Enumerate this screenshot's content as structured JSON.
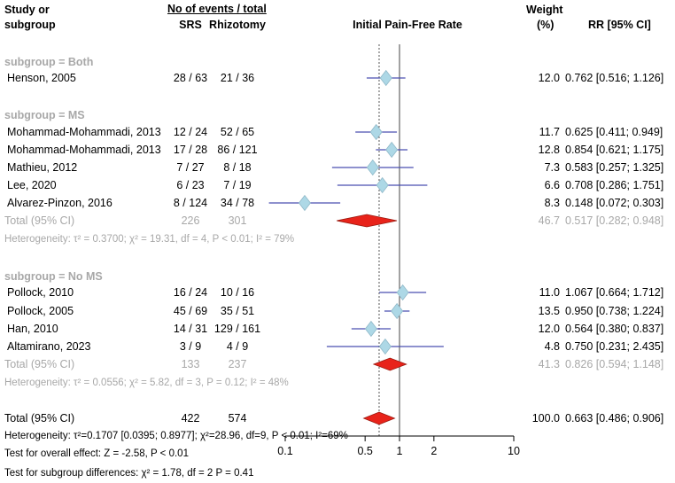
{
  "header": {
    "col_study_line1": "Study or",
    "col_study_line2": "subgroup",
    "col_events": "No of events / total",
    "col_srs": "SRS",
    "col_rhizotomy": "Rhizotomy",
    "col_plot": "Initial Pain-Free Rate",
    "col_weight_line1": "Weight",
    "col_weight_line2": "(%)",
    "col_rr": "RR [95% CI]"
  },
  "colors": {
    "diamond_study": "#add8e6",
    "diamond_study_stroke": "#8fb8c8",
    "ci_line": "#4a4fb0",
    "summary_diamond": "#e8231a",
    "summary_stroke": "#9a1a10",
    "gray_text": "#a8a8a8"
  },
  "chart_data": {
    "type": "forest",
    "title": "Initial Pain-Free Rate",
    "xscale": "log",
    "xlim": [
      0.1,
      10
    ],
    "xticks": [
      "0.1",
      "0.5",
      "1",
      "2",
      "10"
    ],
    "null_line": 1,
    "overall_line": 0.663,
    "subgroups": [
      {
        "label": "subgroup = Both",
        "studies": [
          {
            "name": "Henson, 2005",
            "srs": "28 / 63",
            "rhiz": "21 / 36",
            "weight": "12.0",
            "rr_text": "0.762 [0.516; 1.126]",
            "rr": 0.762,
            "lo": 0.516,
            "hi": 1.126
          }
        ]
      },
      {
        "label": "subgroup = MS",
        "studies": [
          {
            "name": "Mohammad-Mohammadi, 2013",
            "srs": "12 / 24",
            "rhiz": "52 / 65",
            "weight": "11.7",
            "rr_text": "0.625 [0.411; 0.949]",
            "rr": 0.625,
            "lo": 0.411,
            "hi": 0.949
          },
          {
            "name": "Mohammad-Mohammadi, 2013",
            "srs": "17 / 28",
            "rhiz": "86 / 121",
            "weight": "12.8",
            "rr_text": "0.854 [0.621; 1.175]",
            "rr": 0.854,
            "lo": 0.621,
            "hi": 1.175
          },
          {
            "name": "Mathieu, 2012",
            "srs": "7 / 27",
            "rhiz": "8 / 18",
            "weight": "7.3",
            "rr_text": "0.583 [0.257; 1.325]",
            "rr": 0.583,
            "lo": 0.257,
            "hi": 1.325
          },
          {
            "name": "Lee, 2020",
            "srs": "6 / 23",
            "rhiz": "7 / 19",
            "weight": "6.6",
            "rr_text": "0.708 [0.286; 1.751]",
            "rr": 0.708,
            "lo": 0.286,
            "hi": 1.751
          },
          {
            "name": "Alvarez-Pinzon, 2016",
            "srs": "8 / 124",
            "rhiz": "34 / 78",
            "weight": "8.3",
            "rr_text": "0.148 [0.072; 0.303]",
            "rr": 0.148,
            "lo": 0.072,
            "hi": 0.303
          }
        ],
        "total": {
          "label": "Total (95% CI)",
          "srs": "226",
          "rhiz": "301",
          "weight": "46.7",
          "rr_text": "0.517 [0.282; 0.948]",
          "rr": 0.517,
          "lo": 0.282,
          "hi": 0.948
        },
        "heterogeneity": "Heterogeneity: τ² = 0.3700; χ² = 19.31, df = 4, P < 0.01; I² = 79%"
      },
      {
        "label": "subgroup = No MS",
        "studies": [
          {
            "name": "Pollock, 2010",
            "srs": "16 / 24",
            "rhiz": "10 / 16",
            "weight": "11.0",
            "rr_text": "1.067 [0.664; 1.712]",
            "rr": 1.067,
            "lo": 0.664,
            "hi": 1.712
          },
          {
            "name": "Pollock, 2005",
            "srs": "45 / 69",
            "rhiz": "35 / 51",
            "weight": "13.5",
            "rr_text": "0.950 [0.738; 1.224]",
            "rr": 0.95,
            "lo": 0.738,
            "hi": 1.224
          },
          {
            "name": "Han, 2010",
            "srs": "14 / 31",
            "rhiz": "129 / 161",
            "weight": "12.0",
            "rr_text": "0.564 [0.380; 0.837]",
            "rr": 0.564,
            "lo": 0.38,
            "hi": 0.837
          },
          {
            "name": "Altamirano, 2023",
            "srs": "3 / 9",
            "rhiz": "4 / 9",
            "weight": "4.8",
            "rr_text": "0.750 [0.231; 2.435]",
            "rr": 0.75,
            "lo": 0.231,
            "hi": 2.435
          }
        ],
        "total": {
          "label": "Total (95% CI)",
          "srs": "133",
          "rhiz": "237",
          "weight": "41.3",
          "rr_text": "0.826 [0.594; 1.148]",
          "rr": 0.826,
          "lo": 0.594,
          "hi": 1.148
        },
        "heterogeneity": "Heterogeneity: τ² = 0.0556; χ² = 5.82, df = 3, P = 0.12; I² = 48%"
      }
    ],
    "overall": {
      "label": "Total (95% CI)",
      "srs": "422",
      "rhiz": "574",
      "weight": "100.0",
      "rr_text": "0.663 [0.486; 0.906]",
      "rr": 0.663,
      "lo": 0.486,
      "hi": 0.906
    },
    "footer": {
      "heterogeneity": "Heterogeneity: τ²=0.1707 [0.0395; 0.8977]; χ²=28.96, df=9, P < 0.01; I²=69%",
      "overall_effect": "Test for overall effect: Z = -2.58, P < 0.01",
      "subgroup_diff": "Test for subgroup differences: χ² = 1.78, df = 2 P = 0.41"
    }
  }
}
